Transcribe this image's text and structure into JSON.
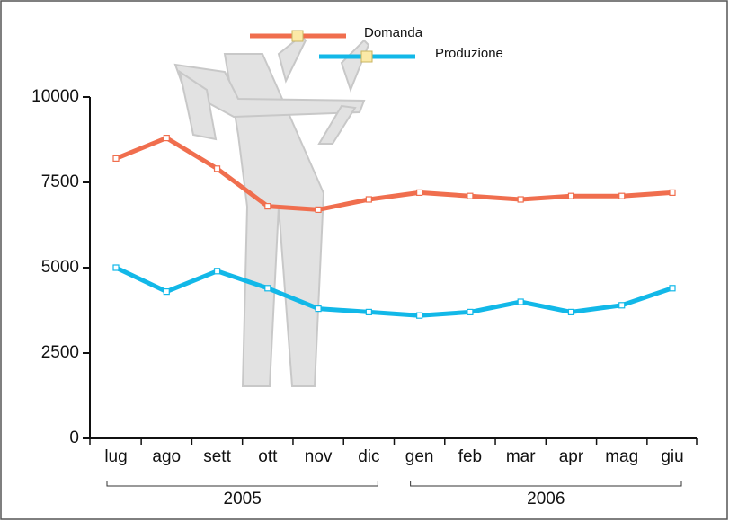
{
  "chart_data": {
    "type": "line",
    "categories": [
      "lug",
      "ago",
      "sett",
      "ott",
      "nov",
      "dic",
      "gen",
      "feb",
      "mar",
      "apr",
      "mag",
      "giu"
    ],
    "year_labels": [
      "2005",
      "2006"
    ],
    "series": [
      {
        "name": "Domanda",
        "color": "#f06e4e",
        "values": [
          8200,
          8800,
          7900,
          6800,
          6700,
          7000,
          7200,
          7100,
          7000,
          7100,
          7100,
          7200
        ]
      },
      {
        "name": "Produzione",
        "color": "#12b8e8",
        "values": [
          5000,
          4300,
          4900,
          4400,
          3800,
          3700,
          3600,
          3700,
          4000,
          3700,
          3900,
          4400
        ]
      }
    ],
    "ylim": [
      0,
      10000
    ],
    "yticks": [
      0,
      2500,
      5000,
      7500,
      10000
    ]
  }
}
